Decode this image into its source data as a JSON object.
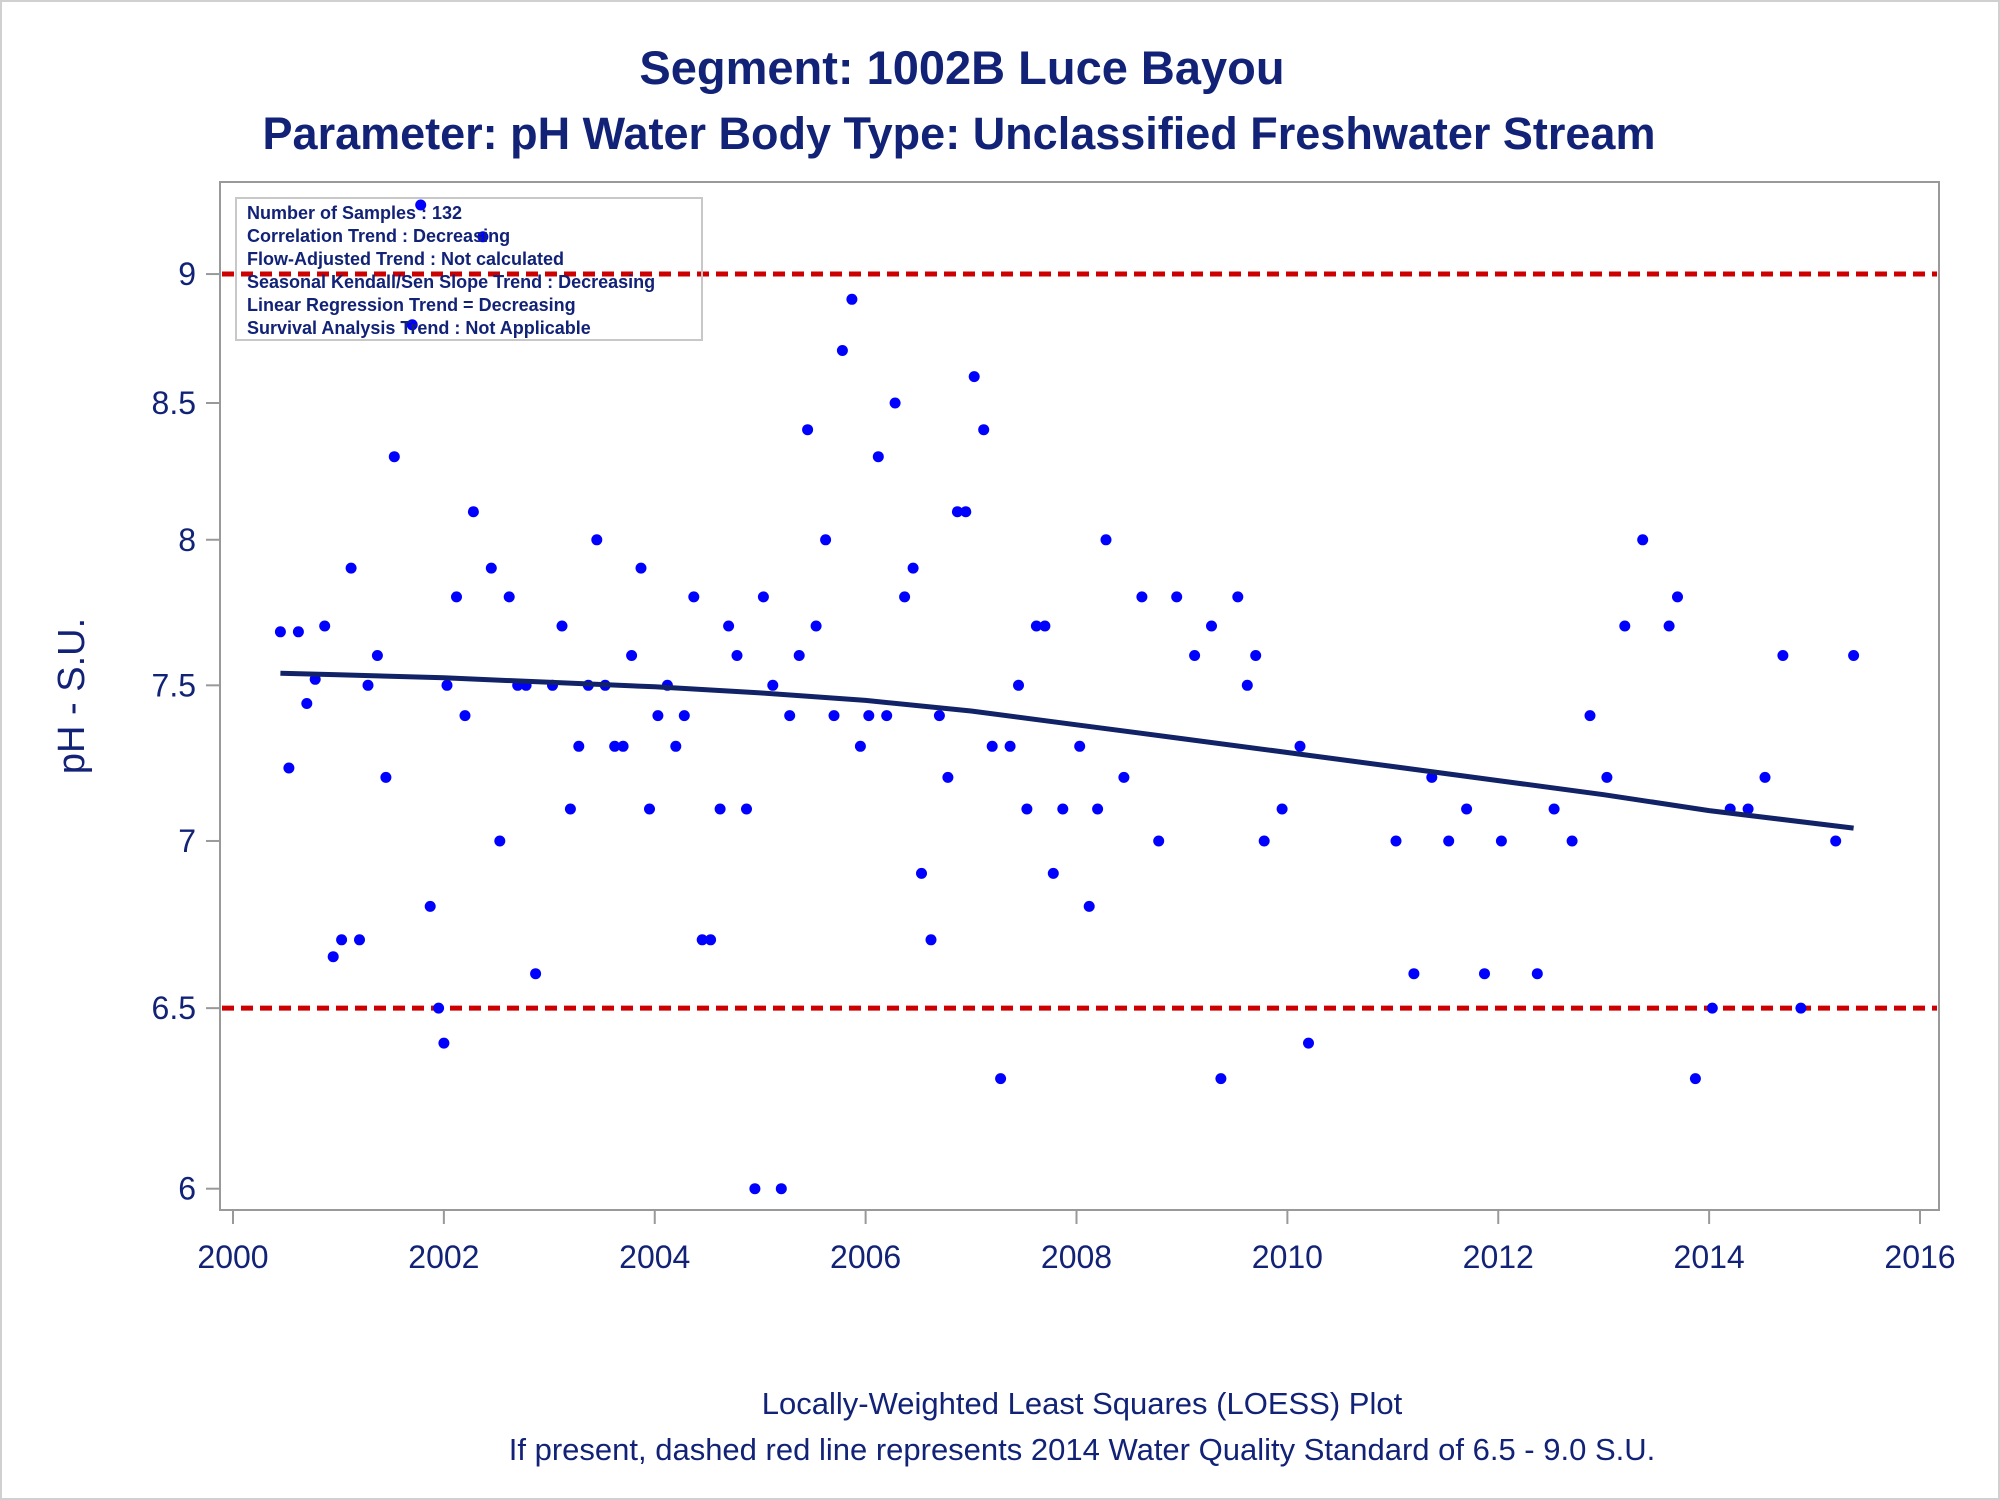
{
  "chart_data": {
    "type": "scatter",
    "title": "Segment: 1002B  Luce Bayou",
    "subtitle": "Parameter: pH   Water Body Type: Unclassified Freshwater Stream",
    "xlabel": "",
    "ylabel": "pH - S.U.",
    "x_ticks": [
      "2000",
      "2002",
      "2004",
      "2006",
      "2008",
      "2010",
      "2012",
      "2014",
      "2016"
    ],
    "y_ticks": [
      "6",
      "6.5",
      "7",
      "7.5",
      "8",
      "8.5",
      "9"
    ],
    "xlim": [
      2000,
      2016
    ],
    "ylim": [
      5.97,
      9.35
    ],
    "y_scale": "log",
    "grid": false,
    "colors": {
      "points": "#0000ff",
      "loess": "#112266",
      "standard": "#cc0000",
      "text": "#112277",
      "frame": "#999999"
    },
    "info_box": [
      "Number of Samples : 132",
      "Correlation Trend : Decreasing",
      "Flow-Adjusted Trend : Not calculated",
      "Seasonal Kendall/Sen Slope Trend : Decreasing",
      "Linear Regression Trend = Decreasing",
      "Survival Analysis Trend : Not Applicable"
    ],
    "standards": [
      6.5,
      9.0
    ],
    "points": [
      [
        2000.45,
        7.68
      ],
      [
        2000.53,
        7.23
      ],
      [
        2000.62,
        7.68
      ],
      [
        2000.7,
        7.44
      ],
      [
        2000.78,
        7.52
      ],
      [
        2000.87,
        7.7
      ],
      [
        2000.95,
        6.65
      ],
      [
        2001.03,
        6.7
      ],
      [
        2001.12,
        7.9
      ],
      [
        2001.2,
        6.7
      ],
      [
        2001.28,
        7.5
      ],
      [
        2001.37,
        7.6
      ],
      [
        2001.45,
        7.2
      ],
      [
        2001.53,
        8.3
      ],
      [
        2001.7,
        8.8
      ],
      [
        2001.78,
        9.28
      ],
      [
        2001.87,
        6.8
      ],
      [
        2001.95,
        6.5
      ],
      [
        2002.0,
        6.4
      ],
      [
        2002.03,
        7.5
      ],
      [
        2002.12,
        7.8
      ],
      [
        2002.2,
        7.4
      ],
      [
        2002.28,
        8.1
      ],
      [
        2002.37,
        9.15
      ],
      [
        2002.45,
        7.9
      ],
      [
        2002.53,
        7.0
      ],
      [
        2002.62,
        7.8
      ],
      [
        2002.7,
        7.5
      ],
      [
        2002.78,
        7.5
      ],
      [
        2002.87,
        6.6
      ],
      [
        2003.03,
        7.5
      ],
      [
        2003.12,
        7.7
      ],
      [
        2003.2,
        7.1
      ],
      [
        2003.28,
        7.3
      ],
      [
        2003.37,
        7.5
      ],
      [
        2003.45,
        8.0
      ],
      [
        2003.53,
        7.5
      ],
      [
        2003.62,
        7.3
      ],
      [
        2003.7,
        7.3
      ],
      [
        2003.78,
        7.6
      ],
      [
        2003.87,
        7.9
      ],
      [
        2003.95,
        7.1
      ],
      [
        2004.03,
        7.4
      ],
      [
        2004.12,
        7.5
      ],
      [
        2004.2,
        7.3
      ],
      [
        2004.28,
        7.4
      ],
      [
        2004.37,
        7.8
      ],
      [
        2004.45,
        6.7
      ],
      [
        2004.53,
        6.7
      ],
      [
        2004.62,
        7.1
      ],
      [
        2004.7,
        7.7
      ],
      [
        2004.78,
        7.6
      ],
      [
        2004.87,
        7.1
      ],
      [
        2004.95,
        6.0
      ],
      [
        2005.03,
        7.8
      ],
      [
        2005.12,
        7.5
      ],
      [
        2005.2,
        6.0
      ],
      [
        2005.28,
        7.4
      ],
      [
        2005.37,
        7.6
      ],
      [
        2005.45,
        8.4
      ],
      [
        2005.53,
        7.7
      ],
      [
        2005.62,
        8.0
      ],
      [
        2005.7,
        7.4
      ],
      [
        2005.78,
        8.7
      ],
      [
        2005.87,
        8.9
      ],
      [
        2005.95,
        7.3
      ],
      [
        2006.03,
        7.4
      ],
      [
        2006.12,
        8.3
      ],
      [
        2006.2,
        7.4
      ],
      [
        2006.28,
        8.5
      ],
      [
        2006.37,
        7.8
      ],
      [
        2006.45,
        7.9
      ],
      [
        2006.53,
        6.9
      ],
      [
        2006.62,
        6.7
      ],
      [
        2006.7,
        7.4
      ],
      [
        2006.78,
        7.2
      ],
      [
        2006.87,
        8.1
      ],
      [
        2006.95,
        8.1
      ],
      [
        2007.03,
        8.6
      ],
      [
        2007.12,
        8.4
      ],
      [
        2007.2,
        7.3
      ],
      [
        2007.28,
        6.3
      ],
      [
        2007.37,
        7.3
      ],
      [
        2007.45,
        7.5
      ],
      [
        2007.53,
        7.1
      ],
      [
        2007.62,
        7.7
      ],
      [
        2007.7,
        7.7
      ],
      [
        2007.78,
        6.9
      ],
      [
        2007.87,
        7.1
      ],
      [
        2008.03,
        7.3
      ],
      [
        2008.12,
        6.8
      ],
      [
        2008.2,
        7.1
      ],
      [
        2008.28,
        8.0
      ],
      [
        2008.45,
        7.2
      ],
      [
        2008.62,
        7.8
      ],
      [
        2008.78,
        7.0
      ],
      [
        2008.95,
        7.8
      ],
      [
        2009.12,
        7.6
      ],
      [
        2009.28,
        7.7
      ],
      [
        2009.37,
        6.3
      ],
      [
        2009.53,
        7.8
      ],
      [
        2009.62,
        7.5
      ],
      [
        2009.7,
        7.6
      ],
      [
        2009.78,
        7.0
      ],
      [
        2009.95,
        7.1
      ],
      [
        2010.12,
        7.3
      ],
      [
        2010.2,
        6.4
      ],
      [
        2011.03,
        7.0
      ],
      [
        2011.2,
        6.6
      ],
      [
        2011.37,
        7.2
      ],
      [
        2011.53,
        7.0
      ],
      [
        2011.7,
        7.1
      ],
      [
        2011.87,
        6.6
      ],
      [
        2012.03,
        7.0
      ],
      [
        2012.37,
        6.6
      ],
      [
        2012.53,
        7.1
      ],
      [
        2012.7,
        7.0
      ],
      [
        2012.87,
        7.4
      ],
      [
        2013.03,
        7.2
      ],
      [
        2013.2,
        7.7
      ],
      [
        2013.37,
        8.0
      ],
      [
        2013.62,
        7.7
      ],
      [
        2013.7,
        7.8
      ],
      [
        2013.87,
        6.3
      ],
      [
        2014.03,
        6.5
      ],
      [
        2014.2,
        7.1
      ],
      [
        2014.37,
        7.1
      ],
      [
        2014.53,
        7.2
      ],
      [
        2014.7,
        7.6
      ],
      [
        2014.87,
        6.5
      ],
      [
        2015.2,
        7.0
      ],
      [
        2015.37,
        7.6
      ]
    ],
    "loess": [
      [
        2000.45,
        7.54
      ],
      [
        2001.0,
        7.535
      ],
      [
        2002.0,
        7.525
      ],
      [
        2003.0,
        7.51
      ],
      [
        2004.0,
        7.495
      ],
      [
        2005.0,
        7.475
      ],
      [
        2006.0,
        7.45
      ],
      [
        2007.0,
        7.415
      ],
      [
        2008.0,
        7.37
      ],
      [
        2009.0,
        7.325
      ],
      [
        2010.0,
        7.28
      ],
      [
        2011.0,
        7.235
      ],
      [
        2012.0,
        7.19
      ],
      [
        2013.0,
        7.145
      ],
      [
        2014.0,
        7.095
      ],
      [
        2015.37,
        7.04
      ]
    ],
    "footnotes": [
      "Locally-Weighted Least Squares (LOESS) Plot",
      "If present, dashed red line represents 2014 Water Quality Standard of 6.5 - 9.0 S.U."
    ]
  }
}
